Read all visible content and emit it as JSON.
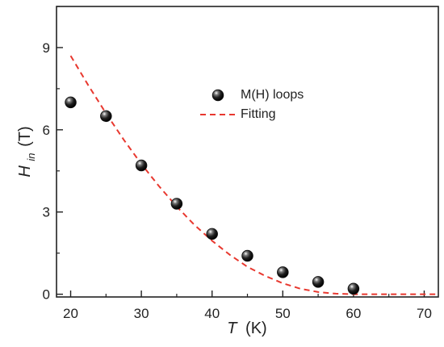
{
  "chart_data": {
    "type": "scatter",
    "title": "",
    "xlabel": {
      "var": "T",
      "unit": "(K)"
    },
    "ylabel": {
      "var": "H",
      "sub": "in",
      "unit": "(T)"
    },
    "xlim": [
      18,
      72
    ],
    "ylim": [
      -0.1,
      10.5
    ],
    "xticks": [
      20,
      30,
      40,
      50,
      60,
      70
    ],
    "yticks": [
      0,
      3,
      6,
      9
    ],
    "xtick_labels": [
      "20",
      "30",
      "40",
      "50",
      "60",
      "70"
    ],
    "ytick_labels": [
      "0",
      "3",
      "6",
      "9"
    ],
    "grid": false,
    "legend_position": "upper-right",
    "series": [
      {
        "name": "M(H) loops",
        "kind": "points",
        "color": "#111111",
        "x": [
          20,
          25,
          30,
          35,
          40,
          45,
          50,
          55,
          60
        ],
        "y": [
          7.0,
          6.5,
          4.7,
          3.3,
          2.2,
          1.4,
          0.8,
          0.45,
          0.2
        ]
      },
      {
        "name": "Fitting",
        "kind": "line",
        "style": "dashed",
        "color": "#e8382f",
        "x": [
          20,
          22.5,
          25,
          27.5,
          30,
          32.5,
          35,
          37.5,
          40,
          42.5,
          45,
          47.5,
          50,
          52.5,
          55,
          57.5,
          60,
          62.5,
          65,
          67.5,
          70,
          72
        ],
        "y": [
          8.7,
          7.62,
          6.6,
          5.64,
          4.75,
          3.94,
          3.2,
          2.53,
          1.95,
          1.44,
          1.0,
          0.67,
          0.4,
          0.2,
          0.08,
          0.02,
          0.0,
          0.0,
          0.0,
          0.0,
          0.0,
          0.0
        ]
      }
    ]
  }
}
